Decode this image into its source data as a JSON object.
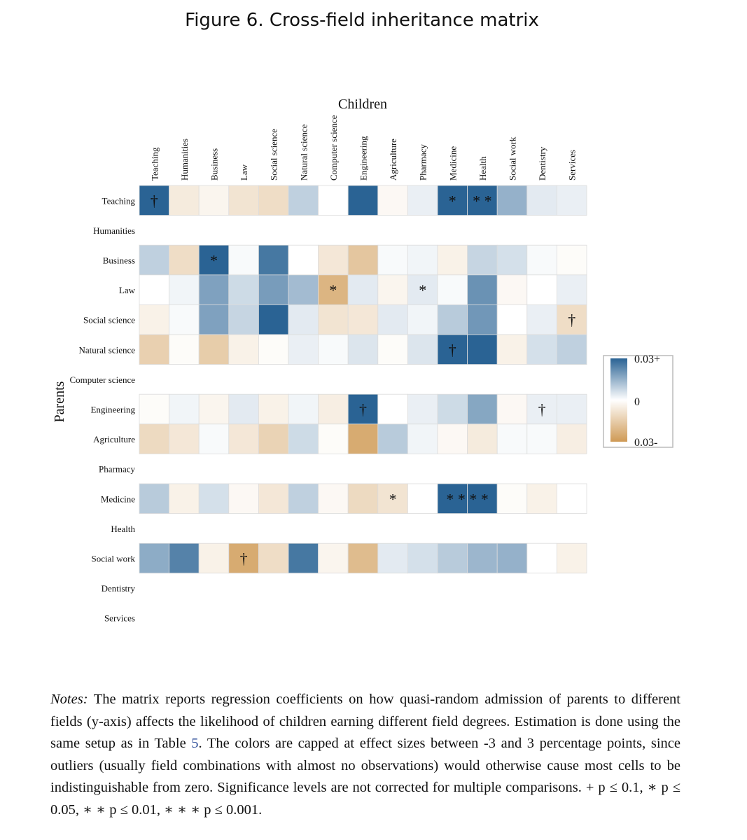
{
  "figure": {
    "title": "Figure 6. Cross-field inheritance matrix"
  },
  "chart_data": {
    "type": "heatmap",
    "xlabel": "Children",
    "ylabel": "Parents",
    "x_categories": [
      "Teaching",
      "Humanities",
      "Business",
      "Law",
      "Social science",
      "Natural science",
      "Computer science",
      "Engineering",
      "Agriculture",
      "Pharmacy",
      "Medicine",
      "Health",
      "Social work",
      "Dentistry",
      "Services"
    ],
    "y_categories": [
      "Teaching",
      "Humanities",
      "Business",
      "Law",
      "Social science",
      "Natural science",
      "Computer science",
      "Engineering",
      "Agriculture",
      "Pharmacy",
      "Medicine",
      "Health",
      "Social work",
      "Dentistry",
      "Services"
    ],
    "color_scale": {
      "min": -0.03,
      "max": 0.03,
      "low_color": "#cf9a55",
      "mid_color": "#ffffff",
      "high_color": "#2a6394",
      "label_top": "0.03+",
      "label_mid": "0",
      "label_bottom": "0.03-"
    },
    "values": [
      [
        0.03,
        -0.006,
        -0.003,
        -0.008,
        -0.01,
        0.009,
        0.0,
        0.03,
        -0.002,
        0.003,
        0.03,
        0.03,
        0.015,
        0.004,
        0.003
      ],
      [
        null,
        null,
        null,
        null,
        null,
        null,
        null,
        null,
        null,
        null,
        null,
        null,
        null,
        null,
        null
      ],
      [
        0.009,
        -0.01,
        0.03,
        0.001,
        0.026,
        0.0,
        -0.007,
        -0.017,
        0.001,
        0.002,
        -0.004,
        0.008,
        0.006,
        0.001,
        -0.001
      ],
      [
        0.0,
        0.002,
        0.018,
        0.007,
        0.019,
        0.013,
        -0.022,
        0.004,
        -0.003,
        0.004,
        0.001,
        0.021,
        -0.002,
        0.0,
        0.003
      ],
      [
        -0.004,
        0.001,
        0.018,
        0.008,
        0.03,
        0.004,
        -0.008,
        -0.007,
        0.004,
        0.002,
        0.01,
        0.02,
        0.0,
        0.003,
        -0.01
      ],
      [
        -0.014,
        -0.001,
        -0.015,
        -0.004,
        -0.001,
        0.003,
        0.001,
        0.005,
        -0.001,
        0.005,
        0.03,
        0.03,
        -0.004,
        0.006,
        0.009
      ],
      [
        null,
        null,
        null,
        null,
        null,
        null,
        null,
        null,
        null,
        null,
        null,
        null,
        null,
        null,
        null
      ],
      [
        -0.001,
        0.002,
        -0.003,
        0.004,
        -0.004,
        0.002,
        -0.005,
        0.03,
        0.0,
        0.003,
        0.007,
        0.017,
        -0.002,
        0.003,
        0.003
      ],
      [
        -0.011,
        -0.007,
        0.001,
        -0.007,
        -0.013,
        0.007,
        -0.001,
        -0.025,
        0.01,
        0.002,
        -0.002,
        -0.006,
        0.001,
        0.001,
        -0.005
      ],
      [
        null,
        null,
        null,
        null,
        null,
        null,
        null,
        null,
        null,
        null,
        null,
        null,
        null,
        null,
        null
      ],
      [
        0.01,
        -0.004,
        0.006,
        -0.002,
        -0.007,
        0.009,
        -0.002,
        -0.011,
        -0.008,
        0.0,
        0.03,
        0.03,
        -0.001,
        -0.004,
        0.0
      ],
      [
        null,
        null,
        null,
        null,
        null,
        null,
        null,
        null,
        null,
        null,
        null,
        null,
        null,
        null,
        null
      ],
      [
        0.016,
        0.024,
        -0.004,
        -0.025,
        -0.01,
        0.026,
        -0.003,
        -0.02,
        0.004,
        0.006,
        0.01,
        0.014,
        0.015,
        0.0,
        -0.004
      ],
      [
        null,
        null,
        null,
        null,
        null,
        null,
        null,
        null,
        null,
        null,
        null,
        null,
        null,
        null,
        null
      ],
      [
        null,
        null,
        null,
        null,
        null,
        null,
        null,
        null,
        null,
        null,
        null,
        null,
        null,
        null,
        null
      ]
    ],
    "significance_marks": [
      {
        "row": 0,
        "col": 0,
        "mark": "†"
      },
      {
        "row": 0,
        "col": 10,
        "mark": "*"
      },
      {
        "row": 0,
        "col": 11,
        "mark": "* *"
      },
      {
        "row": 2,
        "col": 2,
        "mark": "*"
      },
      {
        "row": 3,
        "col": 6,
        "mark": "*"
      },
      {
        "row": 3,
        "col": 9,
        "mark": "*"
      },
      {
        "row": 4,
        "col": 14,
        "mark": "†"
      },
      {
        "row": 5,
        "col": 10,
        "mark": "†"
      },
      {
        "row": 7,
        "col": 7,
        "mark": "†"
      },
      {
        "row": 7,
        "col": 13,
        "mark": "†"
      },
      {
        "row": 10,
        "col": 8,
        "mark": "*"
      },
      {
        "row": 10,
        "col": 10,
        "mark": "* * * *"
      },
      {
        "row": 12,
        "col": 3,
        "mark": "†"
      }
    ]
  },
  "notes": {
    "label": "Notes:",
    "text_before_ref": " The matrix reports regression coefficients on how quasi-random admission of parents to different fields (y-axis) affects the likelihood of children earning different field degrees. Estimation is done using the same setup as in Table ",
    "table_ref": "5",
    "text_after_ref": ". The colors are capped at effect sizes between -3 and 3 percentage points, since outliers (usually field combinations with almost no observations) would otherwise cause most cells to be indistinguishable from zero. Significance levels are not corrected for multiple comparisons. + p ≤ 0.1, ∗ p ≤ 0.05, ∗ ∗ p ≤ 0.01, ∗ ∗ ∗ p ≤ 0.001."
  }
}
